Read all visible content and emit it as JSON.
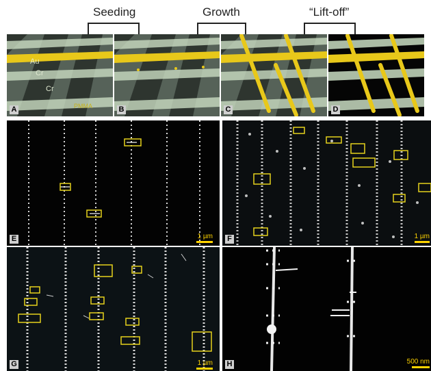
{
  "headers": {
    "seeding": "Seeding",
    "growth": "Growth",
    "liftoff": "“Lift-off”"
  },
  "panels": {
    "A": {
      "label": "A",
      "materials": {
        "au": "Au",
        "cr_top": "Cr",
        "cr_bottom": "Cr",
        "pmma": "PMMA"
      }
    },
    "B": {
      "label": "B"
    },
    "C": {
      "label": "C"
    },
    "D": {
      "label": "D"
    },
    "E": {
      "label": "E",
      "scale": "1 µm"
    },
    "F": {
      "label": "F",
      "scale": "1 µm"
    },
    "G": {
      "label": "G",
      "scale": "1 µm"
    },
    "H": {
      "label": "H",
      "scale": "500 nm"
    }
  },
  "colors": {
    "gold": "#e8c81a",
    "highlight_box": "#e6d21c",
    "wire": "#e8ece4",
    "background": "#050505"
  }
}
